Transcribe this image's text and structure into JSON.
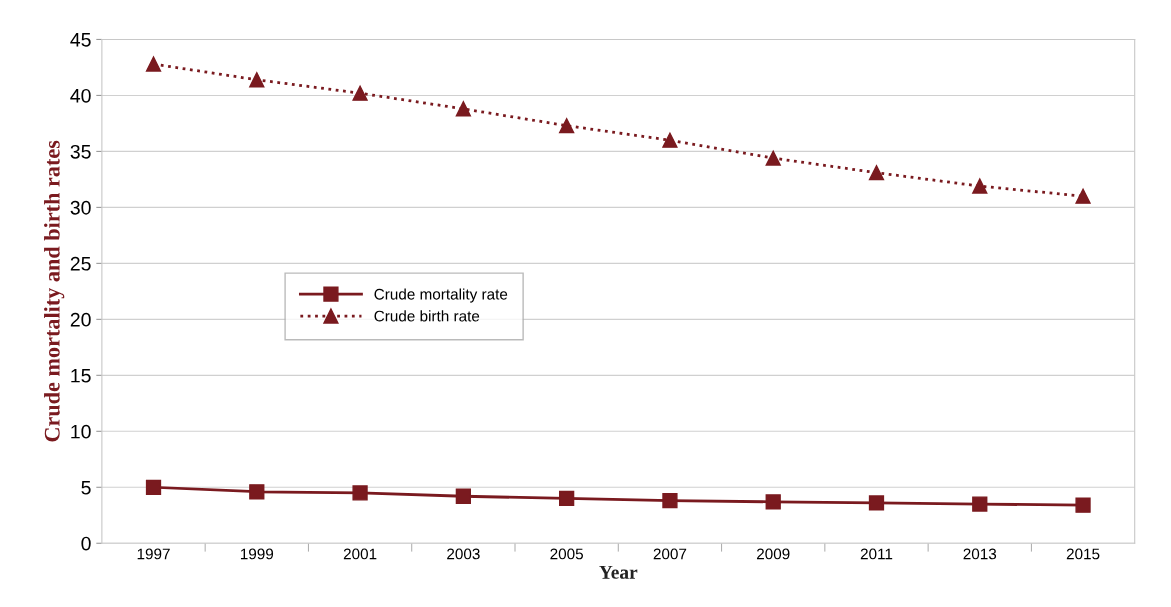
{
  "chart_data": {
    "type": "line",
    "xlabel": "Year",
    "ylabel": "Crude mortality and birth rates",
    "categories": [
      "1997",
      "1999",
      "2001",
      "2003",
      "2005",
      "2007",
      "2009",
      "2011",
      "2013",
      "2015"
    ],
    "series": [
      {
        "name": "Crude mortality rate",
        "color": "#7a1a1f",
        "marker": "square",
        "line_style": "solid",
        "values": [
          5.0,
          4.6,
          4.5,
          4.2,
          4.0,
          3.8,
          3.7,
          3.6,
          3.5,
          3.4
        ]
      },
      {
        "name": "Crude birth rate",
        "color": "#7a1a1f",
        "marker": "triangle",
        "line_style": "dotted",
        "values": [
          42.8,
          41.4,
          40.2,
          38.8,
          37.3,
          36.0,
          34.4,
          33.1,
          31.9,
          31.0
        ]
      }
    ],
    "ylim": [
      0,
      45
    ],
    "yticks": [
      0,
      5,
      10,
      15,
      20,
      25,
      30,
      35,
      40,
      45
    ],
    "grid": "y",
    "legend": "center left"
  }
}
